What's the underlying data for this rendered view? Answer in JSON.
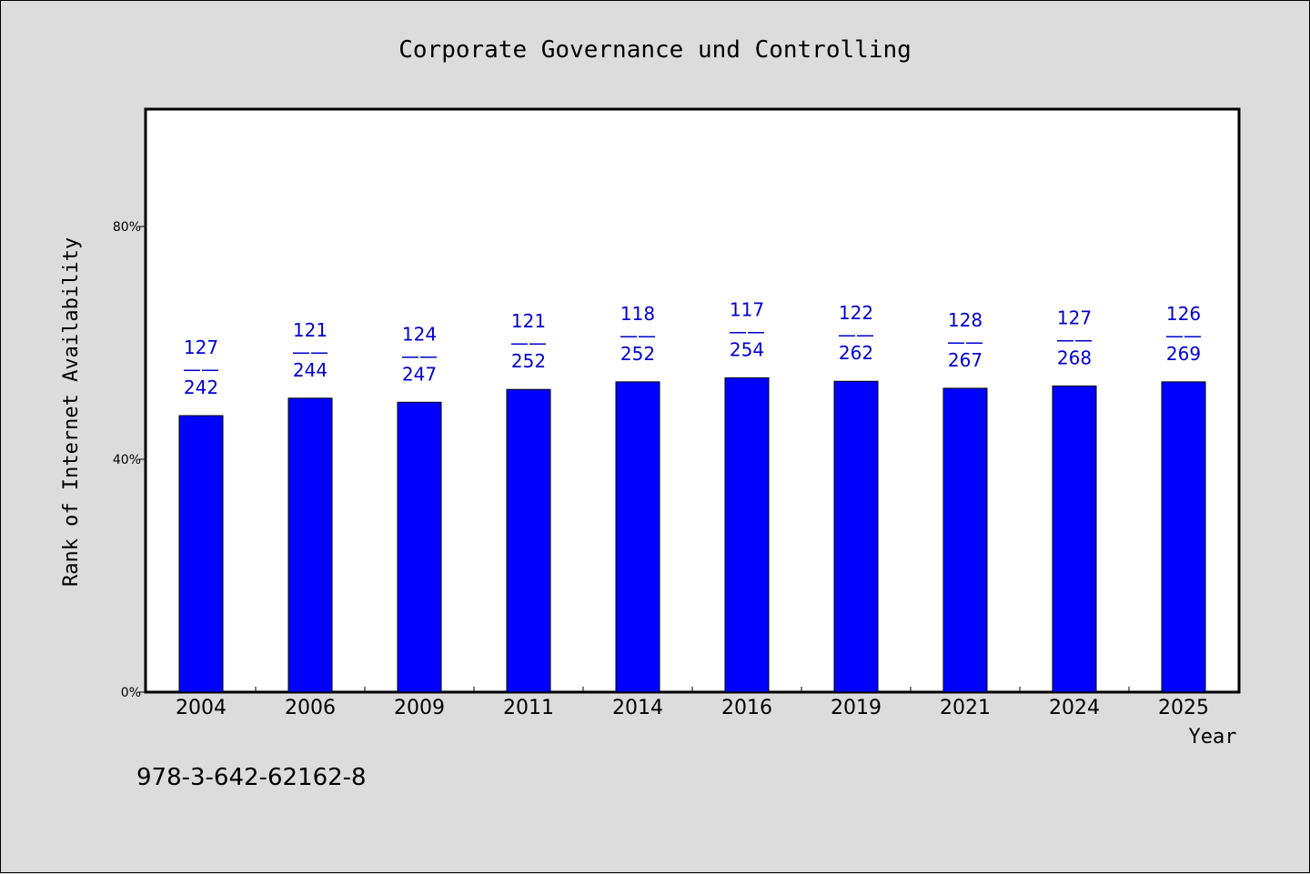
{
  "chart_data": {
    "type": "bar",
    "title": "Corporate Governance und Controlling",
    "xlabel": "Year",
    "ylabel": "Rank of Internet Availability",
    "ylim": [
      0,
      100
    ],
    "yticks": [
      "0%",
      "40%",
      "80%"
    ],
    "ytick_values": [
      0,
      40,
      80
    ],
    "categories": [
      "2004",
      "2006",
      "2009",
      "2011",
      "2014",
      "2016",
      "2019",
      "2021",
      "2024",
      "2025"
    ],
    "values": [
      47.5,
      50.5,
      49.8,
      52.0,
      53.3,
      54.0,
      53.4,
      52.2,
      52.6,
      53.3
    ],
    "labels": [
      {
        "rank": "127",
        "sep": "——",
        "total": "242"
      },
      {
        "rank": "121",
        "sep": "——",
        "total": "244"
      },
      {
        "rank": "124",
        "sep": "——",
        "total": "247"
      },
      {
        "rank": "121",
        "sep": "——",
        "total": "252"
      },
      {
        "rank": "118",
        "sep": "——",
        "total": "252"
      },
      {
        "rank": "117",
        "sep": "——",
        "total": "254"
      },
      {
        "rank": "122",
        "sep": "——",
        "total": "262"
      },
      {
        "rank": "128",
        "sep": "——",
        "total": "267"
      },
      {
        "rank": "127",
        "sep": "——",
        "total": "268"
      },
      {
        "rank": "126",
        "sep": "——",
        "total": "269"
      }
    ],
    "bar_color": "#0000ff",
    "label_color": "#0000cc",
    "grid": false,
    "legend": "none"
  },
  "footer": {
    "isbn": "978-3-642-62162-8"
  }
}
